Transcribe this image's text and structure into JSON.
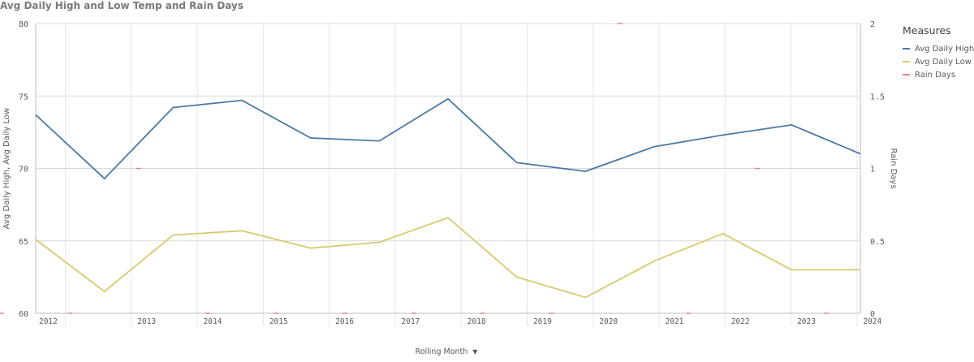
{
  "chart_data": {
    "type": "line",
    "title": "Avg Daily High and Low Temp and Rain Days",
    "xlabel": "Rolling Month",
    "ylabel": "Avg Daily High, Avg Daily Low",
    "y2label": "Rain Days",
    "ylim": [
      60,
      80
    ],
    "y2lim": [
      0,
      2
    ],
    "yticks": [
      "60",
      "65",
      "70",
      "75",
      "80"
    ],
    "y2ticks": [
      "0",
      "0.5",
      "1",
      "1.5",
      "2"
    ],
    "year_labels": [
      "2012",
      "2013",
      "2014",
      "2015",
      "2016",
      "2017",
      "2018",
      "2019",
      "2020",
      "2021",
      "2022",
      "2023",
      "2024"
    ],
    "x_points": 13,
    "series": [
      {
        "name": "Avg Daily High",
        "axis": "left",
        "color": "#4a78a7",
        "values": [
          73.7,
          69.3,
          74.2,
          74.7,
          72.1,
          71.9,
          74.8,
          70.4,
          69.8,
          71.5,
          72.3,
          73.0,
          71.0
        ]
      },
      {
        "name": "Avg Daily Low",
        "axis": "left",
        "color": "#dac86e",
        "values": [
          65.1,
          61.5,
          65.4,
          65.7,
          64.5,
          64.9,
          66.6,
          62.5,
          61.1,
          63.6,
          65.5,
          63.0,
          63.0
        ]
      },
      {
        "name": "Rain Days",
        "axis": "right",
        "color": "#e87a86",
        "values": [
          0,
          0,
          1,
          0,
          0,
          0,
          0,
          0,
          0,
          2,
          0,
          1,
          0
        ]
      }
    ],
    "legend": {
      "title": "Measures",
      "position": "right"
    }
  }
}
